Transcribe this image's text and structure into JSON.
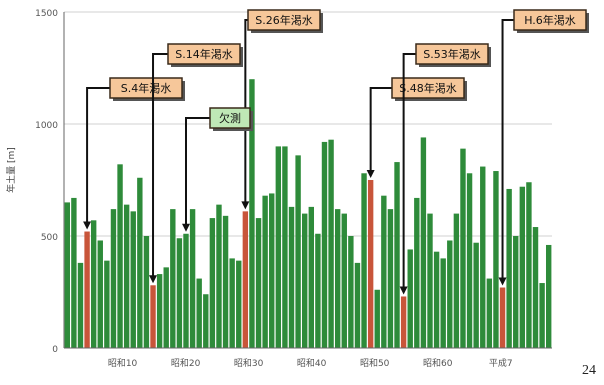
{
  "page_number": "24",
  "top_title_partial": "...",
  "colors": {
    "bar": "#2e8b3a",
    "drought_bar": "#c8553a",
    "callout_bg": "#f6c79a",
    "callout_border": "#3a2a1a",
    "war_label_bg": "#bfe8b6"
  },
  "chart_data": {
    "type": "bar",
    "ylabel": "年土量 [m]",
    "ylim": [
      0,
      1500
    ],
    "yticks": [
      "0",
      "500",
      "1000",
      "1500"
    ],
    "xtick_labels": [
      "昭和10",
      "昭和20",
      "昭和30",
      "昭和40",
      "昭和50",
      "昭和60",
      "平成7"
    ],
    "values": [
      650,
      670,
      380,
      520,
      570,
      480,
      390,
      620,
      820,
      640,
      610,
      760,
      500,
      280,
      330,
      360,
      620,
      490,
      510,
      620,
      310,
      240,
      580,
      640,
      590,
      400,
      390,
      610,
      1200,
      580,
      680,
      690,
      900,
      900,
      630,
      860,
      600,
      630,
      510,
      920,
      930,
      620,
      600,
      500,
      380,
      780,
      750,
      260,
      680,
      620,
      830,
      230,
      440,
      670,
      940,
      600,
      430,
      400,
      480,
      600,
      890,
      780,
      470,
      810,
      310,
      790,
      270,
      710,
      500,
      720,
      740,
      540,
      290,
      460
    ],
    "drought_indices": [
      3,
      13,
      27,
      46,
      51,
      66
    ],
    "annotations": [
      {
        "label": "S.4年渇水",
        "bar_index": 3
      },
      {
        "label": "S.14年渇水",
        "bar_index": 13
      },
      {
        "label": "S.26年渇水",
        "bar_index": 27
      },
      {
        "label": "S.48年渇水",
        "bar_index": 46
      },
      {
        "label": "S.53年渇水",
        "bar_index": 51
      },
      {
        "label": "H.6年渇水",
        "bar_index": 66
      },
      {
        "label": "欠測",
        "bar_index": 18,
        "kind": "missing"
      }
    ]
  }
}
